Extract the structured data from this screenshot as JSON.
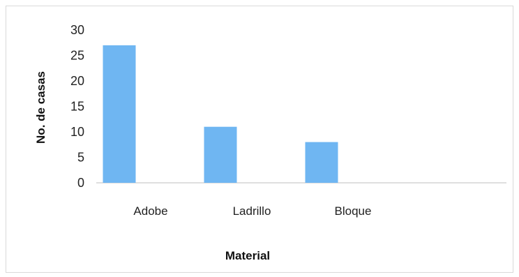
{
  "chart_data": {
    "type": "bar",
    "title": "",
    "xlabel": "Material",
    "ylabel": "No. de casas",
    "categories": [
      "Adobe",
      "Ladrillo",
      "Bloque"
    ],
    "values": [
      27,
      11,
      8
    ],
    "ylim": [
      0,
      30
    ],
    "yticks": [
      "0",
      "5",
      "10",
      "15",
      "20",
      "25",
      "30"
    ],
    "grid": false,
    "legend": "none",
    "bar_color": "#6fb6f2",
    "axis_color": "#bfbfbf"
  }
}
